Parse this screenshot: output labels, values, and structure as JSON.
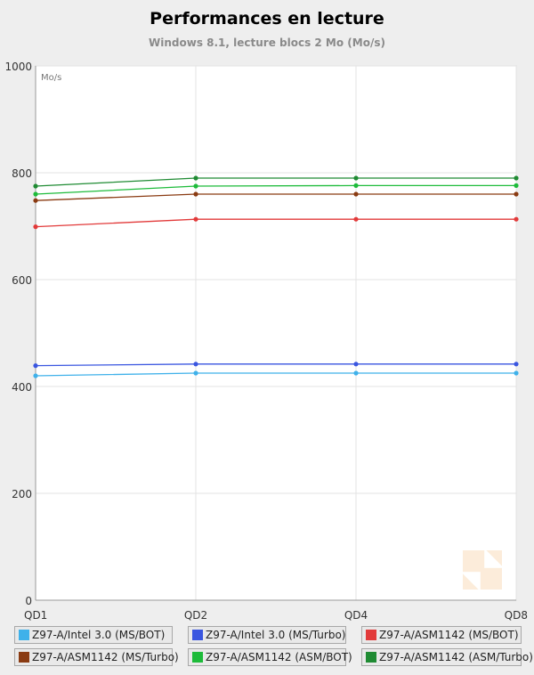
{
  "header": {
    "title": "Performances en lecture",
    "subtitle": "Windows 8.1, lecture blocs 2 Mo (Mo/s)"
  },
  "chart_data": {
    "type": "line",
    "title": "Performances en lecture",
    "subtitle": "Windows 8.1, lecture blocs 2 Mo (Mo/s)",
    "unit_label": "Mo/s",
    "categories": [
      "QD1",
      "QD2",
      "QD4",
      "QD8"
    ],
    "ylim": [
      0,
      1000
    ],
    "yticks": [
      0,
      200,
      400,
      600,
      800,
      1000
    ],
    "grid": true,
    "legend_position": "bottom",
    "series": [
      {
        "name": "Z97-A/Intel 3.0 (MS/BOT)",
        "color": "#3fb1ea",
        "values": [
          420,
          425,
          425,
          425
        ]
      },
      {
        "name": "Z97-A/Intel 3.0 (MS/Turbo)",
        "color": "#3a56e0",
        "values": [
          439,
          442,
          442,
          442
        ]
      },
      {
        "name": "Z97-A/ASM1142 (MS/BOT)",
        "color": "#e23a3a",
        "values": [
          699,
          713,
          713,
          713
        ]
      },
      {
        "name": "Z97-A/ASM1142 (MS/Turbo)",
        "color": "#8a3b12",
        "values": [
          748,
          760,
          760,
          760
        ]
      },
      {
        "name": "Z97-A/ASM1142 (ASM/BOT)",
        "color": "#1dbb3a",
        "values": [
          760,
          775,
          776,
          776
        ]
      },
      {
        "name": "Z97-A/ASM1142 (ASM/Turbo)",
        "color": "#1f8b33",
        "values": [
          775,
          790,
          790,
          790
        ]
      }
    ]
  }
}
